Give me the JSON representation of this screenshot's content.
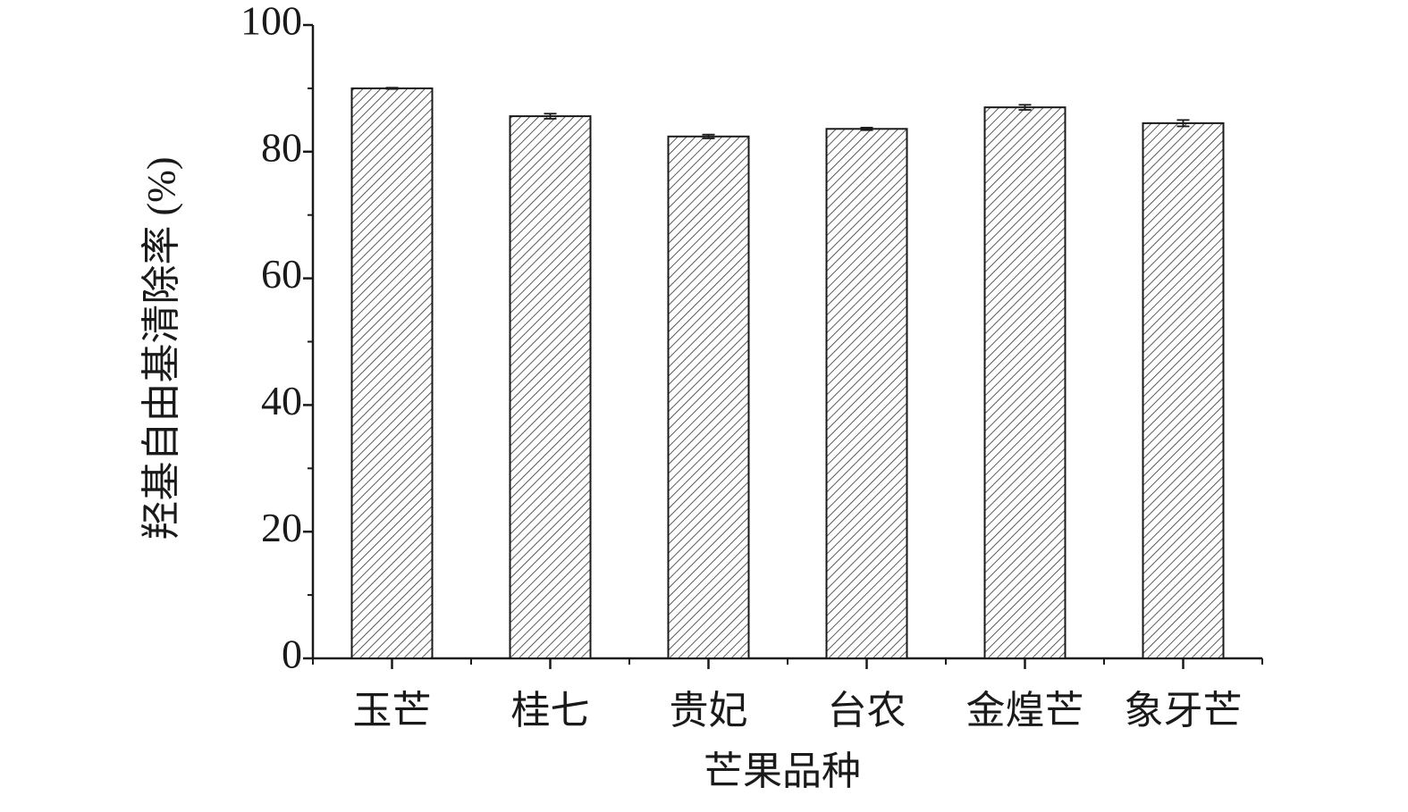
{
  "chart_data": {
    "type": "bar",
    "xlabel": "芒果品种",
    "ylabel": "羟基自由基清除率 (%)",
    "categories": [
      "玉芒",
      "桂七",
      "贵妃",
      "台农",
      "金煌芒",
      "象牙芒"
    ],
    "values": [
      90.0,
      85.6,
      82.4,
      83.6,
      87.0,
      84.5
    ],
    "errors": [
      0.1,
      0.4,
      0.3,
      0.2,
      0.4,
      0.5
    ],
    "color": "#333333",
    "hatch": true,
    "ylim": [
      0,
      100
    ],
    "yticks": [
      0,
      20,
      40,
      60,
      80,
      100
    ],
    "grid": false
  }
}
